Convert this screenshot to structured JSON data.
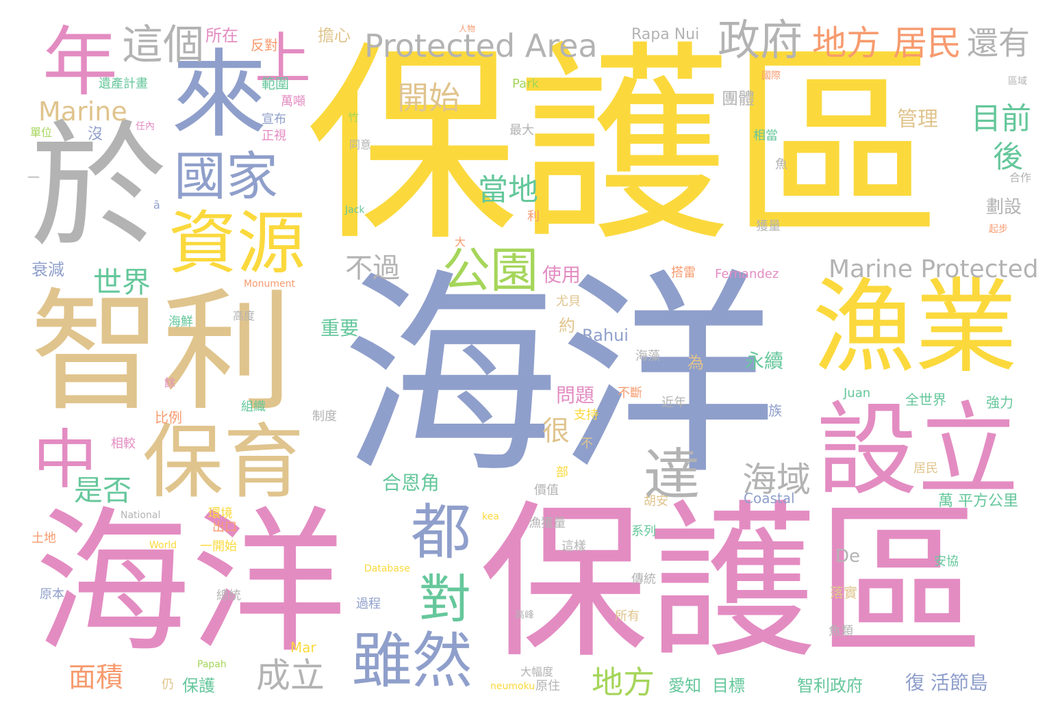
{
  "palette": {
    "yellow": "#fbd93d",
    "blue": "#8f9fcb",
    "pink": "#e38cc2",
    "tan": "#e0c48d",
    "gray": "#b3b3b3",
    "green": "#65c79b",
    "orange": "#f79b6f",
    "lime": "#a5d55a"
  },
  "words": [
    "保護區",
    "海洋",
    "智利",
    "海洋",
    "保護區",
    "於",
    "來",
    "年",
    "上",
    "漁業",
    "設立",
    "保育",
    "資源",
    "國家",
    "中",
    "都",
    "雖然",
    "公園",
    "對",
    "達",
    "海域",
    "這個",
    "Protected Area",
    "政府",
    "地方",
    "居民",
    "還有",
    "Marine",
    "開始",
    "目前",
    "當地",
    "不過",
    "世界",
    "是否",
    "面積",
    "成立",
    "地方",
    "Marine Protected",
    "後",
    "很",
    "管理",
    "Rahui",
    "永續",
    "重要",
    "問題",
    "使用",
    "合恩角",
    "劃設",
    "所在",
    "擔心",
    "Rapa Nui",
    "反對",
    "衰減",
    "團體",
    "Park",
    "範圍",
    "遺產計畫",
    "宣布",
    "正視",
    "Fernandez",
    "搭雷",
    "尤貝",
    "約",
    "保護",
    "愛知",
    "目標",
    "智利政府",
    "復 活節島",
    "萬 平方公里",
    "居民",
    "De",
    "海藻",
    "民族",
    "Juan",
    "全世界",
    "強力",
    "Coastal",
    "胡安",
    "系列",
    "這樣",
    "傳統",
    "落實",
    "魚類",
    "所有",
    "安協",
    "大幅度",
    "原住",
    "漁獲量",
    "價值",
    "高峰",
    "Mar",
    "組織",
    "沒",
    "比例",
    "環境",
    "一開始",
    "出口",
    "原本",
    "總統",
    "過程",
    "制度",
    "近年",
    "不斷",
    "支持",
    "不",
    "部",
    "為",
    "海鮮",
    "高度",
    "餘",
    "相較",
    "任內",
    "單位",
    "相當",
    "魚",
    "合作",
    "獲量",
    "起步",
    "最大",
    "同意",
    "萬噸",
    "熱",
    "Jack",
    "Monument",
    "National",
    "World",
    "Database",
    "Papah",
    "neumoku",
    "kea",
    "利",
    "大",
    "ā",
    "一",
    "竹",
    "人物",
    "國際",
    "區域",
    "土地",
    "仍"
  ]
}
